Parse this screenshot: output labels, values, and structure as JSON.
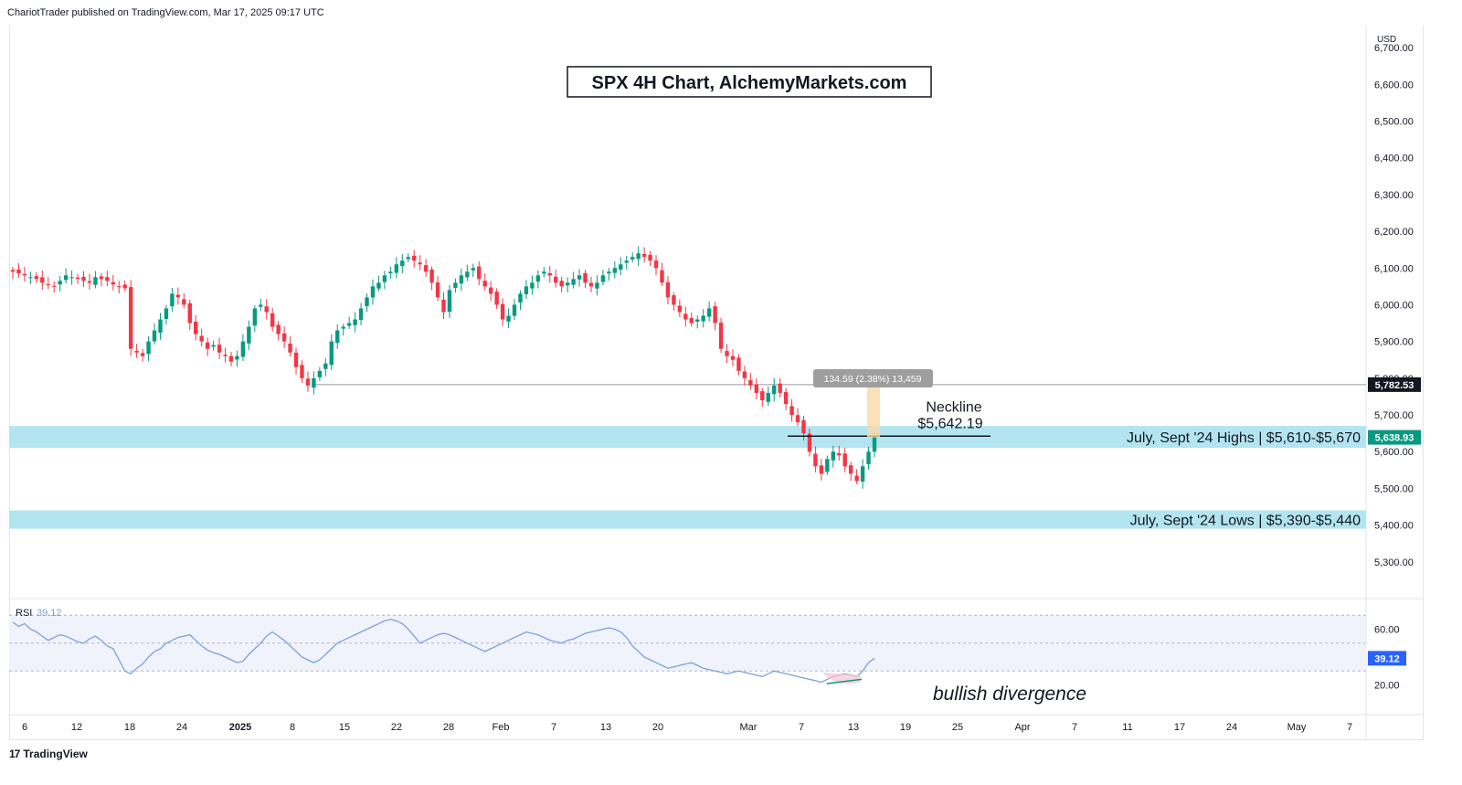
{
  "header": {
    "published": "ChariotTrader published on TradingView.com, Mar 17, 2025 09:17 UTC"
  },
  "footer": {
    "brand": "TradingView",
    "logo_glyph": "17"
  },
  "chart_data": {
    "type": "candlestick",
    "title": "SPX 4H Chart, AlchemyMarkets.com",
    "currency": "USD",
    "ylim": [
      5200,
      6760
    ],
    "y_ticks": [
      "6,700.00",
      "6,600.00",
      "6,500.00",
      "6,400.00",
      "6,300.00",
      "6,200.00",
      "6,100.00",
      "6,000.00",
      "5,900.00",
      "5,800.00",
      "5,700.00",
      "5,600.00",
      "5,500.00",
      "5,400.00",
      "5,300.00"
    ],
    "y_tick_values": [
      6700,
      6600,
      6500,
      6400,
      6300,
      6200,
      6100,
      6000,
      5900,
      5800,
      5700,
      5600,
      5500,
      5400,
      5300
    ],
    "x_ticks": [
      "6",
      "12",
      "18",
      "24",
      "2025",
      "8",
      "15",
      "22",
      "28",
      "Feb",
      "7",
      "13",
      "20",
      "Mar",
      "7",
      "13",
      "19",
      "25",
      "Apr",
      "7",
      "11",
      "17",
      "24",
      "May",
      "7"
    ],
    "series_closes": [
      6090,
      6085,
      6080,
      6075,
      6070,
      6060,
      6055,
      6050,
      6065,
      6080,
      6075,
      6070,
      6065,
      6060,
      6075,
      6070,
      6065,
      6055,
      6050,
      6045,
      5880,
      5870,
      5860,
      5900,
      5930,
      5960,
      5990,
      6030,
      6020,
      6000,
      5950,
      5920,
      5900,
      5880,
      5890,
      5870,
      5860,
      5845,
      5860,
      5900,
      5940,
      5990,
      6000,
      5980,
      5940,
      5920,
      5900,
      5870,
      5830,
      5800,
      5780,
      5800,
      5820,
      5840,
      5900,
      5930,
      5940,
      5950,
      5960,
      5990,
      6020,
      6050,
      6060,
      6080,
      6090,
      6110,
      6120,
      6130,
      6120,
      6110,
      6090,
      6060,
      6020,
      5980,
      6040,
      6060,
      6080,
      6090,
      6100,
      6070,
      6050,
      6030,
      6000,
      5960,
      5970,
      6000,
      6030,
      6050,
      6060,
      6080,
      6090,
      6080,
      6060,
      6050,
      6060,
      6070,
      6080,
      6060,
      6050,
      6060,
      6080,
      6090,
      6100,
      6110,
      6120,
      6130,
      6140,
      6130,
      6120,
      6100,
      6060,
      6020,
      6000,
      5980,
      5960,
      5950,
      5960,
      5970,
      5990,
      5950,
      5880,
      5860,
      5850,
      5820,
      5800,
      5780,
      5760,
      5740,
      5760,
      5780,
      5760,
      5730,
      5700,
      5680,
      5650,
      5600,
      5560,
      5540,
      5580,
      5600,
      5590,
      5560,
      5540,
      5520,
      5560,
      5600,
      5638.93
    ],
    "x_range_bars": [
      0,
      240
    ],
    "current_price_label": "5,638.93",
    "level_line": {
      "label": "5,782.53",
      "value": 5782.53
    },
    "zones": [
      {
        "label": "July, Sept '24 Highs | $5,610-$5,670",
        "low": 5610,
        "high": 5670
      },
      {
        "label": "July, Sept '24 Lows | $5,390-$5,440",
        "low": 5390,
        "high": 5440
      }
    ],
    "neckline": {
      "label": "Neckline",
      "price_label": "$5,642.19",
      "value": 5642.19
    },
    "measure_box": {
      "label": "134.59 (2.38%) 13,459"
    },
    "rsi": {
      "label": "RSI",
      "value_label": "39.12",
      "ylim": [
        0,
        80
      ],
      "levels": [
        70,
        50,
        30
      ],
      "tick_labels": [
        "60.00",
        "20.00"
      ],
      "tick_values": [
        60,
        20
      ],
      "values": [
        65,
        62,
        64,
        60,
        58,
        55,
        52,
        54,
        56,
        55,
        53,
        51,
        50,
        53,
        55,
        52,
        48,
        46,
        38,
        30,
        28,
        32,
        35,
        40,
        44,
        46,
        50,
        52,
        54,
        55,
        56,
        52,
        48,
        45,
        43,
        42,
        40,
        38,
        36,
        37,
        42,
        46,
        50,
        55,
        58,
        55,
        52,
        48,
        44,
        40,
        38,
        36,
        38,
        42,
        46,
        50,
        52,
        54,
        56,
        58,
        60,
        62,
        64,
        66,
        67,
        66,
        64,
        60,
        55,
        50,
        52,
        54,
        56,
        57,
        56,
        54,
        52,
        50,
        48,
        46,
        44,
        46,
        48,
        50,
        52,
        54,
        56,
        58,
        57,
        56,
        54,
        52,
        51,
        50,
        52,
        53,
        55,
        57,
        58,
        59,
        60,
        61,
        60,
        58,
        54,
        48,
        44,
        40,
        38,
        36,
        34,
        32,
        33,
        34,
        35,
        36,
        34,
        32,
        31,
        30,
        29,
        28,
        29,
        30,
        29,
        28,
        27,
        26,
        28,
        30,
        29,
        28,
        27,
        26,
        25,
        24,
        23,
        22,
        24,
        26,
        27,
        28,
        27,
        26,
        30,
        36,
        39.12
      ],
      "divergence_label": "bullish divergence"
    },
    "colors": {
      "up": "#089981",
      "down": "#f23645",
      "zone": "#b3e5f0",
      "rsi_line": "#7e9fd8",
      "rsi_band": "#f0f3fc",
      "divergence_line": "#089981",
      "divergence_fill": "#f7c5cc",
      "measure_box": "#9e9e9e",
      "measure_bar": "#f9d9a8",
      "price_tag_current": "#089981",
      "price_tag_level": "#131722",
      "rsi_tag": "#2962ff"
    }
  }
}
